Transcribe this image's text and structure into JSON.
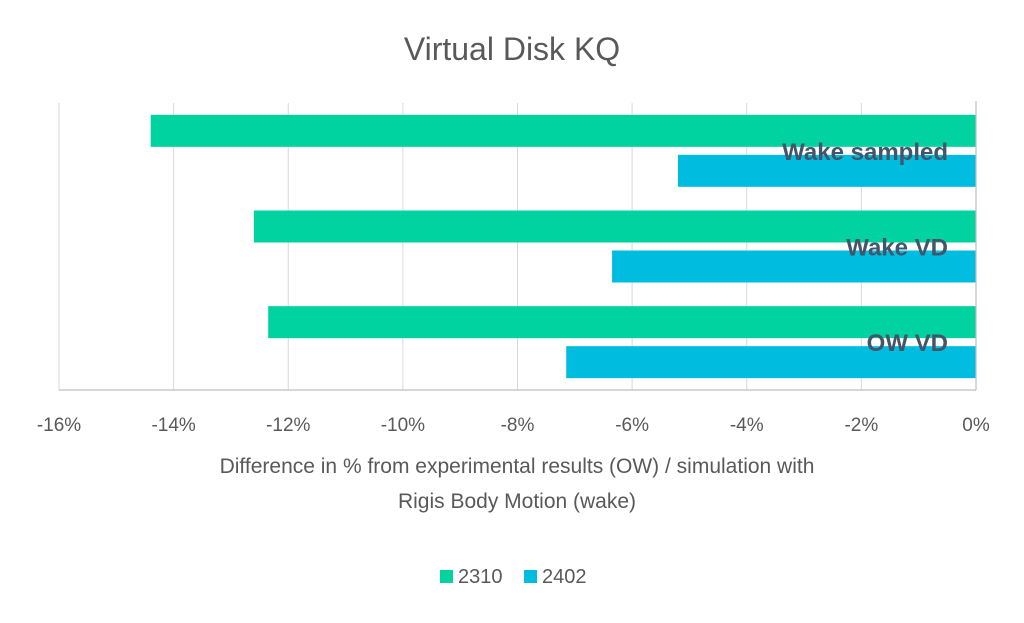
{
  "chart_data": {
    "type": "bar",
    "orientation": "horizontal",
    "title": "Virtual Disk KQ",
    "xlabel_lines": [
      "Difference in % from experimental results (OW) / simulation with",
      "Rigis Body Motion (wake)"
    ],
    "ylabel": "",
    "categories": [
      "Wake sampled",
      "Wake VD",
      "OW VD"
    ],
    "series": [
      {
        "name": "2310",
        "color": "#00d3a0",
        "values": [
          -14.4,
          -12.6,
          -12.35
        ]
      },
      {
        "name": "2402",
        "color": "#00bde0",
        "values": [
          -5.2,
          -6.35,
          -7.15
        ]
      }
    ],
    "xlim": [
      -16,
      0
    ],
    "x_ticks": [
      -16,
      -14,
      -12,
      -10,
      -8,
      -6,
      -4,
      -2,
      0
    ],
    "x_tick_labels": [
      "-16%",
      "-14%",
      "-12%",
      "-10%",
      "-8%",
      "-6%",
      "-4%",
      "-2%",
      "0%"
    ],
    "grid": true,
    "legend_position": "bottom"
  }
}
